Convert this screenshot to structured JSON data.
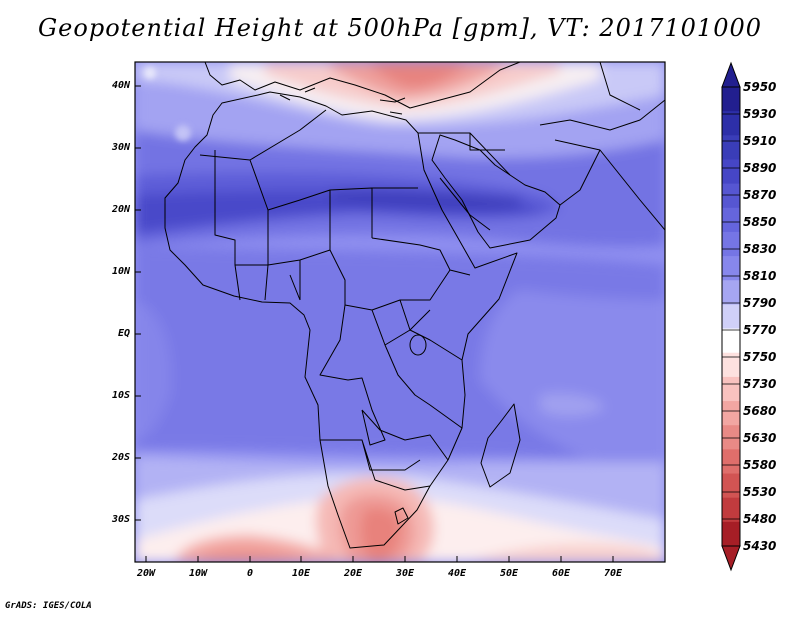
{
  "title": "Geopotential Height at 500hPa [gpm], VT: 2017101000",
  "credit": "GrADS: IGES/COLA",
  "map": {
    "variable": "Geopotential Height",
    "level": "500hPa",
    "units": "gpm",
    "valid_time": "2017101000",
    "projection": "latlon",
    "extent": {
      "lon_min": -22,
      "lon_max": 80,
      "lat_min": -36,
      "lat_max": 44
    },
    "lat_labels": [
      "40N",
      "30N",
      "20N",
      "10N",
      "EQ",
      "10S",
      "20S",
      "30S"
    ],
    "lon_labels": [
      "20W",
      "10W",
      "0",
      "10E",
      "20E",
      "30E",
      "40E",
      "50E",
      "60E",
      "70E"
    ],
    "map_elements": [
      "coastlines",
      "country borders"
    ]
  },
  "colorbar": {
    "labels": [
      "5950",
      "5930",
      "5910",
      "5890",
      "5870",
      "5850",
      "5830",
      "5810",
      "5790",
      "5770",
      "5750",
      "5730",
      "5680",
      "5630",
      "5580",
      "5530",
      "5480",
      "5430"
    ],
    "colors": [
      "#221f8f",
      "#2d2fa8",
      "#3a3db8",
      "#4646c6",
      "#5656d2",
      "#6565dd",
      "#7575e5",
      "#8787ec",
      "#a6a6f2",
      "#d0d0f8",
      "#ffffff",
      "#fde1df",
      "#f9c2bf",
      "#f2a6a2",
      "#e98a86",
      "#df6e6b",
      "#d25453",
      "#c13b3e",
      "#a61e26"
    ],
    "top_arrow_color": "#221f8f",
    "bottom_arrow_color": "#a61e26"
  }
}
